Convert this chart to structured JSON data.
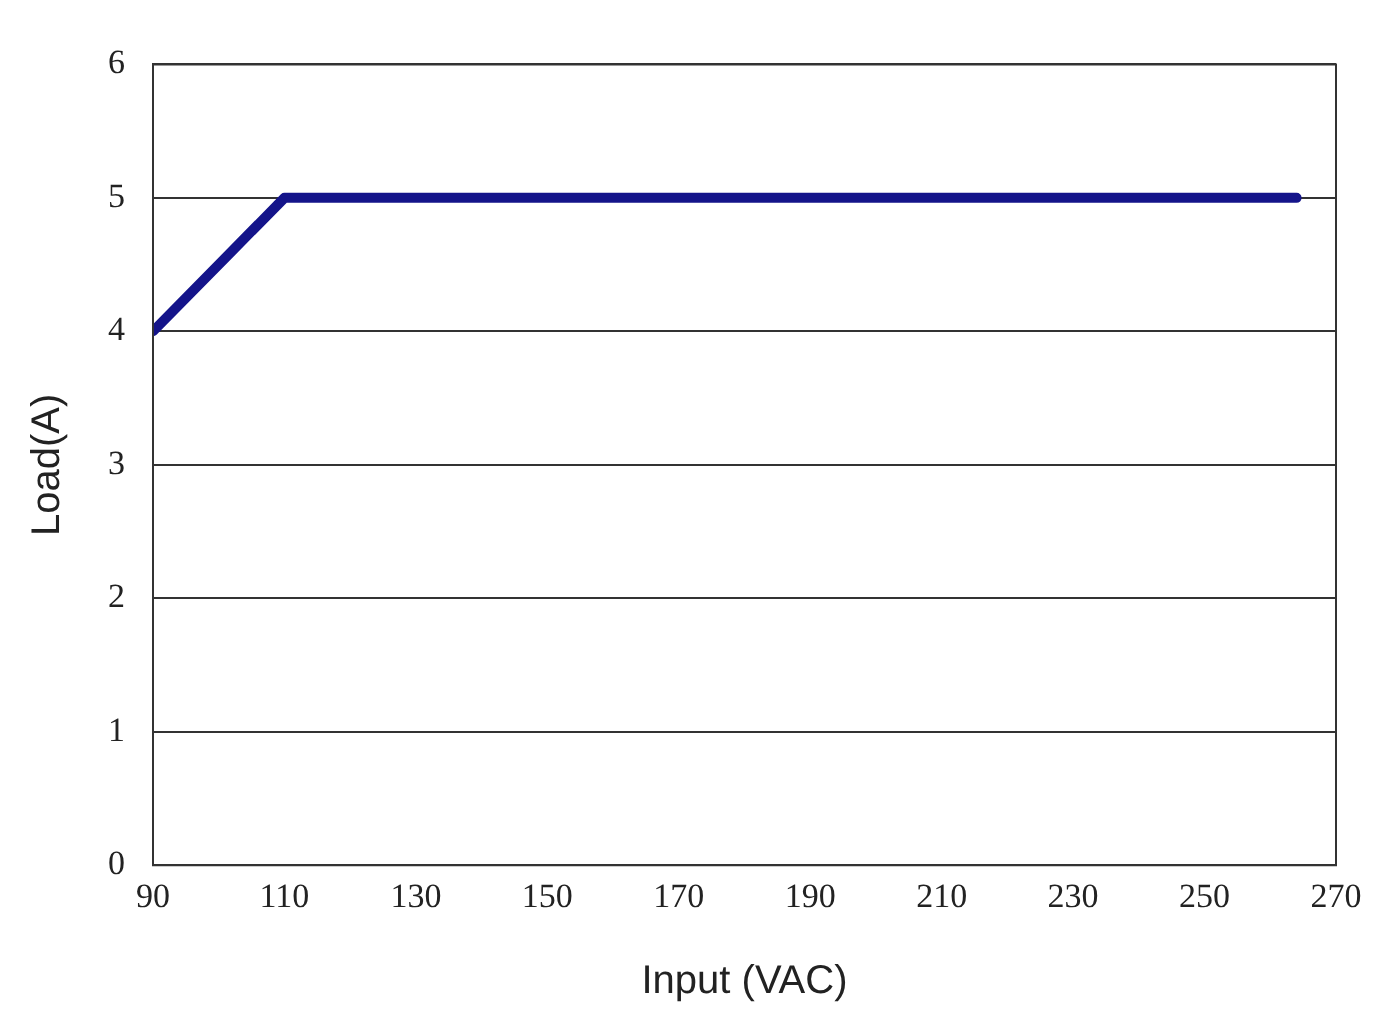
{
  "chart_data": {
    "type": "line",
    "xlabel": "Input (VAC)",
    "ylabel": "Load(A)",
    "x": [
      90,
      110,
      264
    ],
    "series": [
      {
        "color": "#14148a",
        "values": [
          4,
          5,
          5
        ]
      }
    ],
    "xlim": [
      90,
      270
    ],
    "xticks": [
      90,
      110,
      130,
      150,
      170,
      190,
      210,
      230,
      250,
      270
    ],
    "ylim": [
      0,
      6
    ],
    "yticks": [
      0,
      1,
      2,
      3,
      4,
      5,
      6
    ],
    "grid": "y",
    "legend": false,
    "marker": "none",
    "line_style": "solid"
  }
}
